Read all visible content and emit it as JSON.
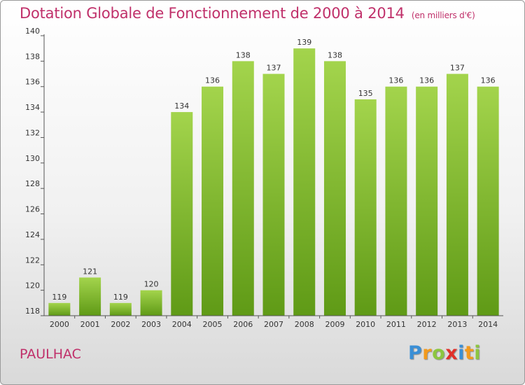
{
  "header": {
    "title": "Dotation Globale de Fonctionnement de 2000 à 2014",
    "unit": "(en milliers d'€)"
  },
  "footer": {
    "commune": "PAULHAC",
    "logo_letters": [
      "P",
      "r",
      "o",
      "x",
      "i",
      "t",
      "i"
    ],
    "logo_colors": [
      "#3a8fd6",
      "#f39a1c",
      "#8cc63f",
      "#e0302a",
      "#3a8fd6",
      "#f39a1c",
      "#8cc63f"
    ]
  },
  "colors": {
    "bar_top": "#a3d44c",
    "bar_bottom": "#5f9a16",
    "title": "#c0306a",
    "axis": "#555555"
  },
  "chart_data": {
    "type": "bar",
    "title": "Dotation Globale de Fonctionnement de 2000 à 2014",
    "subtitle": "(en milliers d'€)",
    "xlabel": "",
    "ylabel": "",
    "categories": [
      "2000",
      "2001",
      "2002",
      "2003",
      "2004",
      "2005",
      "2006",
      "2007",
      "2008",
      "2009",
      "2010",
      "2011",
      "2012",
      "2013",
      "2014"
    ],
    "values": [
      119,
      121,
      119,
      120,
      134,
      136,
      138,
      137,
      139,
      138,
      135,
      136,
      136,
      137,
      136
    ],
    "ylim": [
      118,
      140
    ],
    "yticks": [
      118,
      120,
      122,
      124,
      126,
      128,
      130,
      132,
      134,
      136,
      138,
      140
    ],
    "grid": false,
    "legend": "none"
  }
}
